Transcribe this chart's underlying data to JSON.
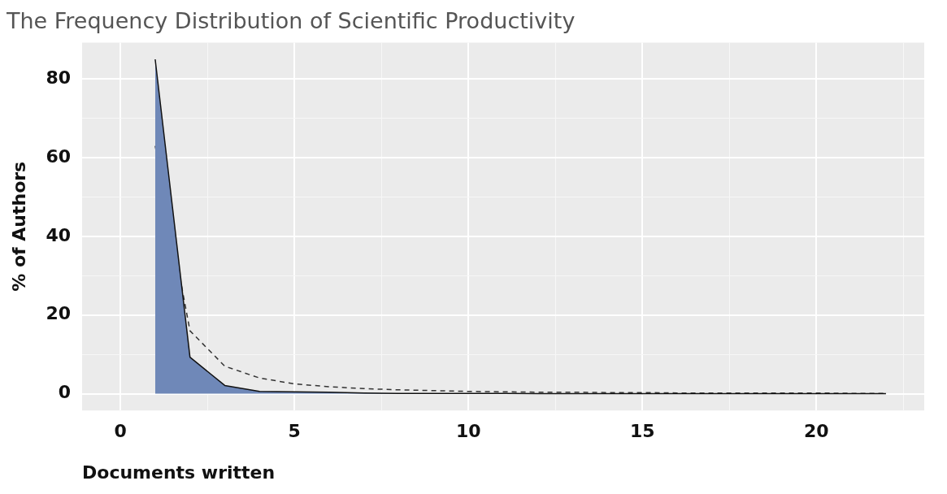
{
  "chart_data": {
    "type": "area",
    "title": "The Frequency Distribution of Scientific Productivity",
    "xlabel": "Documents written",
    "ylabel": "% of Authors",
    "x": [
      1,
      2,
      3,
      4,
      5,
      6,
      7,
      8,
      9,
      10,
      11,
      12,
      13,
      14,
      15,
      16,
      17,
      18,
      19,
      20,
      21,
      22
    ],
    "series": [
      {
        "color": "#6f88b8",
        "values": [
          85,
          9.3,
          2.1,
          0.6,
          0.5,
          0.4,
          0.2,
          0.1,
          0.1,
          0.1,
          0.1,
          0,
          0,
          0,
          0,
          0,
          0,
          0,
          0,
          0,
          0,
          0
        ]
      },
      {
        "type": "line",
        "line_style": "dashed",
        "color": "#333333",
        "values": [
          63,
          16,
          7,
          4,
          2.5,
          1.8,
          1.3,
          1,
          0.8,
          0.6,
          0.5,
          0.4,
          0.4,
          0.3,
          0.3,
          0.2,
          0.2,
          0.2,
          0.2,
          0.2,
          0.1,
          0.1
        ]
      }
    ],
    "xlim": [
      -1.1,
      23.1
    ],
    "ylim": [
      -4.25,
      89.25
    ],
    "xticks": [
      0,
      {
        "value": 2.5,
        "label": null
      },
      5,
      {
        "value": 7.5,
        "label": null
      },
      10,
      {
        "value": 12.5,
        "label": null
      },
      15,
      {
        "value": 17.5,
        "label": null
      },
      20,
      {
        "value": 22.5,
        "label": null
      }
    ],
    "yticks": [
      0,
      {
        "value": 10,
        "label": null
      },
      20,
      {
        "value": 30,
        "label": null
      },
      40,
      {
        "value": 50,
        "label": null
      },
      60,
      {
        "value": 70,
        "label": null
      },
      80
    ],
    "grid": true,
    "legend": false
  }
}
